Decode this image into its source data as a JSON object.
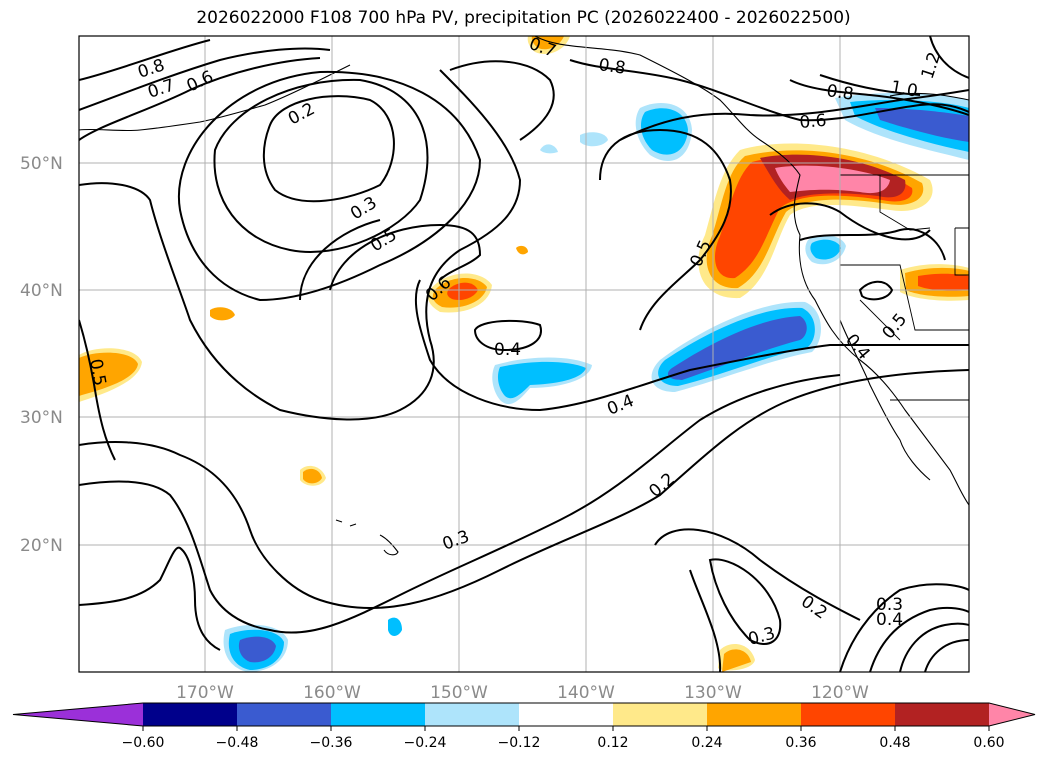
{
  "title": "2026022000 F108 700 hPa PV, precipitation PC (2026022400 - 2026022500)",
  "map": {
    "lat_labels": [
      "50°N",
      "40°N",
      "30°N",
      "20°N"
    ],
    "lon_labels": [
      "170°W",
      "160°W",
      "150°W",
      "140°W",
      "130°W",
      "120°W"
    ],
    "grid": "on"
  },
  "contour_labels": [
    "0.8",
    "0.7",
    "0.6",
    "0.2",
    "0.3",
    "0.5",
    "0.7",
    "0.8",
    "1.2",
    "0.8",
    "1.0",
    "0.6",
    "0.5",
    "0.6",
    "0.4",
    "0.5",
    "0.4",
    "0.5",
    "0.4",
    "0.2",
    "0.3",
    "0.3",
    "0.2",
    "0.3",
    "0.4"
  ],
  "colorbar": {
    "ticks": [
      "−0.60",
      "−0.48",
      "−0.36",
      "−0.24",
      "−0.12",
      "0.12",
      "0.24",
      "0.36",
      "0.48",
      "0.60"
    ],
    "colors": [
      "#9b30d9",
      "#00008b",
      "#3a5bd0",
      "#00bfff",
      "#aee4fb",
      "#ffffff",
      "#ffe98a",
      "#ffa500",
      "#ff4500",
      "#b22222",
      "#ff85a8"
    ],
    "extend": "both"
  }
}
